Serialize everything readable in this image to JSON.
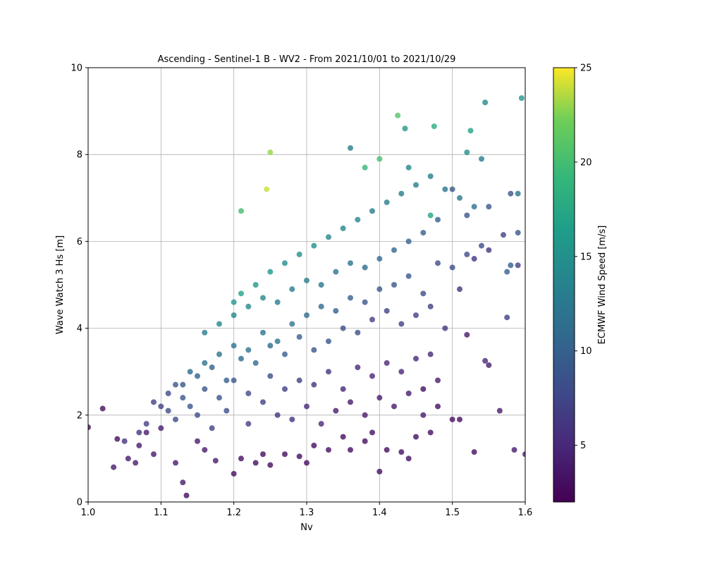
{
  "chart_data": {
    "type": "scatter",
    "title": "Ascending - Sentinel-1 B - WV2 - From 2021/10/01 to 2021/10/29",
    "xlabel": "Nv",
    "ylabel": "Wave Watch 3 Hs [m]",
    "xlim": [
      1.0,
      1.6
    ],
    "ylim": [
      0,
      10
    ],
    "xticks": [
      "1.0",
      "1.1",
      "1.2",
      "1.3",
      "1.4",
      "1.5",
      "1.6"
    ],
    "yticks": [
      "0",
      "2",
      "4",
      "6",
      "8",
      "10"
    ],
    "grid": true,
    "colormap": "viridis",
    "colorbar": {
      "label": "ECMWF Wind Speed [m/s]",
      "range": [
        2,
        25
      ],
      "ticks": [
        "5",
        "10",
        "15",
        "20",
        "25"
      ]
    },
    "series": [
      {
        "x": [
          1.0,
          1.02,
          1.035,
          1.04,
          1.055,
          1.065,
          1.07,
          1.08,
          1.09,
          1.1,
          1.12,
          1.13,
          1.135,
          1.15,
          1.16,
          1.175,
          1.2,
          1.21,
          1.23,
          1.24,
          1.25,
          1.27,
          1.29,
          1.3,
          1.31,
          1.33,
          1.35,
          1.36,
          1.38,
          1.39,
          1.4,
          1.41,
          1.43,
          1.44,
          1.45,
          1.46,
          1.47,
          1.48,
          1.5,
          1.51,
          1.52,
          1.53,
          1.545,
          1.55,
          1.565,
          1.575,
          1.585,
          1.6,
          1.05,
          1.08,
          1.1,
          1.12,
          1.15,
          1.17,
          1.19,
          1.22,
          1.24,
          1.26,
          1.28,
          1.3,
          1.32,
          1.34,
          1.36,
          1.38,
          1.4,
          1.42,
          1.44,
          1.46,
          1.48,
          1.07,
          1.09,
          1.11,
          1.13,
          1.14,
          1.16,
          1.18,
          1.2,
          1.22,
          1.25,
          1.27,
          1.29,
          1.31,
          1.33,
          1.35,
          1.37,
          1.39,
          1.41,
          1.43,
          1.45,
          1.47,
          1.11,
          1.13,
          1.15,
          1.17,
          1.19,
          1.21,
          1.23,
          1.25,
          1.27,
          1.29,
          1.31,
          1.33,
          1.35,
          1.37,
          1.39,
          1.41,
          1.43,
          1.45,
          1.47,
          1.49,
          1.51,
          1.53,
          1.55,
          1.57,
          1.59,
          1.12,
          1.14,
          1.16,
          1.18,
          1.2,
          1.22,
          1.24,
          1.26,
          1.28,
          1.3,
          1.32,
          1.34,
          1.36,
          1.38,
          1.4,
          1.42,
          1.44,
          1.46,
          1.48,
          1.5,
          1.52,
          1.54,
          1.16,
          1.18,
          1.2,
          1.22,
          1.24,
          1.26,
          1.28,
          1.3,
          1.32,
          1.34,
          1.36,
          1.38,
          1.4,
          1.42,
          1.44,
          1.46,
          1.48,
          1.5,
          1.52,
          1.55,
          1.58,
          1.59,
          1.2,
          1.21,
          1.23,
          1.25,
          1.27,
          1.29,
          1.31,
          1.33,
          1.35,
          1.37,
          1.39,
          1.41,
          1.43,
          1.45,
          1.47,
          1.49,
          1.51,
          1.53,
          1.21,
          1.25,
          1.245,
          1.36,
          1.38,
          1.4,
          1.425,
          1.435,
          1.475,
          1.52,
          1.525,
          1.545,
          1.595,
          1.54,
          1.59,
          1.575,
          1.58,
          1.44,
          1.47
        ],
        "y": [
          1.72,
          2.15,
          0.8,
          1.45,
          1.0,
          0.9,
          1.3,
          1.6,
          1.1,
          1.7,
          0.9,
          0.45,
          0.15,
          1.4,
          1.2,
          0.95,
          0.65,
          1.0,
          0.9,
          1.1,
          0.85,
          1.1,
          1.05,
          0.9,
          1.3,
          1.2,
          1.5,
          1.2,
          1.4,
          1.6,
          0.7,
          1.2,
          1.15,
          1.0,
          1.5,
          2.6,
          1.6,
          2.2,
          1.9,
          1.9,
          3.85,
          1.15,
          3.25,
          3.15,
          2.1,
          4.25,
          1.2,
          1.1,
          1.4,
          1.8,
          2.2,
          1.9,
          2.0,
          1.7,
          2.1,
          1.8,
          2.3,
          2.0,
          1.9,
          2.2,
          1.8,
          2.1,
          2.3,
          2.0,
          2.4,
          2.2,
          2.5,
          2.0,
          2.8,
          1.6,
          2.3,
          2.5,
          2.7,
          2.2,
          2.6,
          2.4,
          2.8,
          2.5,
          2.9,
          2.6,
          2.8,
          2.7,
          3.0,
          2.6,
          3.1,
          2.9,
          3.2,
          3.0,
          3.3,
          3.4,
          2.1,
          2.4,
          2.9,
          3.1,
          2.8,
          3.3,
          3.2,
          3.6,
          3.4,
          3.8,
          3.5,
          3.7,
          4.0,
          3.9,
          4.2,
          4.4,
          4.1,
          4.3,
          4.5,
          4.0,
          4.9,
          5.6,
          5.8,
          6.15,
          5.45,
          2.7,
          3.0,
          3.2,
          3.4,
          3.6,
          3.5,
          3.9,
          3.7,
          4.1,
          4.3,
          4.5,
          4.4,
          4.7,
          4.6,
          4.9,
          5.0,
          5.2,
          4.8,
          5.5,
          5.4,
          5.7,
          5.9,
          3.9,
          4.1,
          4.3,
          4.5,
          4.7,
          4.6,
          4.9,
          5.1,
          5.0,
          5.3,
          5.5,
          5.4,
          5.6,
          5.8,
          6.0,
          6.2,
          6.5,
          7.2,
          6.6,
          6.8,
          7.1,
          6.2,
          4.6,
          4.8,
          5.0,
          5.3,
          5.5,
          5.7,
          5.9,
          6.1,
          6.3,
          6.5,
          6.7,
          6.9,
          7.1,
          7.3,
          7.5,
          7.2,
          7.0,
          6.8,
          6.7,
          8.05,
          7.2,
          8.15,
          7.7,
          7.9,
          8.9,
          8.6,
          8.65,
          8.05,
          8.55,
          9.2,
          9.3,
          7.9,
          7.1,
          5.3,
          5.45,
          7.7,
          6.6
        ],
        "c": [
          3,
          3,
          4,
          3,
          4,
          4,
          4,
          4,
          4,
          4,
          4,
          4,
          3,
          4,
          4,
          4,
          3,
          3,
          3,
          3,
          3,
          3,
          3,
          3,
          3,
          3,
          3,
          3,
          3,
          3,
          3,
          3,
          3,
          3,
          3,
          3,
          3,
          3,
          3,
          3,
          4,
          3,
          5,
          4,
          4,
          7,
          4,
          4,
          6,
          7,
          7,
          8,
          8,
          7,
          8,
          7,
          7,
          6,
          6,
          5,
          5,
          4,
          4,
          4,
          4,
          4,
          4,
          4,
          4,
          6,
          7,
          8,
          9,
          9,
          9,
          9,
          9,
          8,
          8,
          7,
          7,
          6,
          6,
          5,
          5,
          5,
          5,
          5,
          5,
          5,
          8,
          9,
          10,
          10,
          10,
          11,
          11,
          11,
          10,
          10,
          9,
          9,
          8,
          8,
          7,
          7,
          7,
          7,
          7,
          6,
          6,
          6,
          6,
          7,
          7,
          9,
          11,
          12,
          12,
          12,
          12,
          12,
          12,
          12,
          11,
          11,
          10,
          10,
          9,
          9,
          9,
          9,
          8,
          8,
          8,
          8,
          8,
          13,
          14,
          14,
          14,
          14,
          13,
          13,
          13,
          12,
          12,
          12,
          11,
          11,
          11,
          10,
          10,
          10,
          9,
          9,
          9,
          9,
          9,
          16,
          17,
          16,
          16,
          15,
          15,
          15,
          14,
          14,
          14,
          13,
          13,
          13,
          13,
          13,
          12,
          12,
          12,
          20,
          23,
          24,
          13,
          19,
          20,
          21,
          16,
          18,
          15,
          17,
          14,
          16,
          13,
          12,
          10,
          10,
          14,
          17
        ]
      }
    ]
  }
}
